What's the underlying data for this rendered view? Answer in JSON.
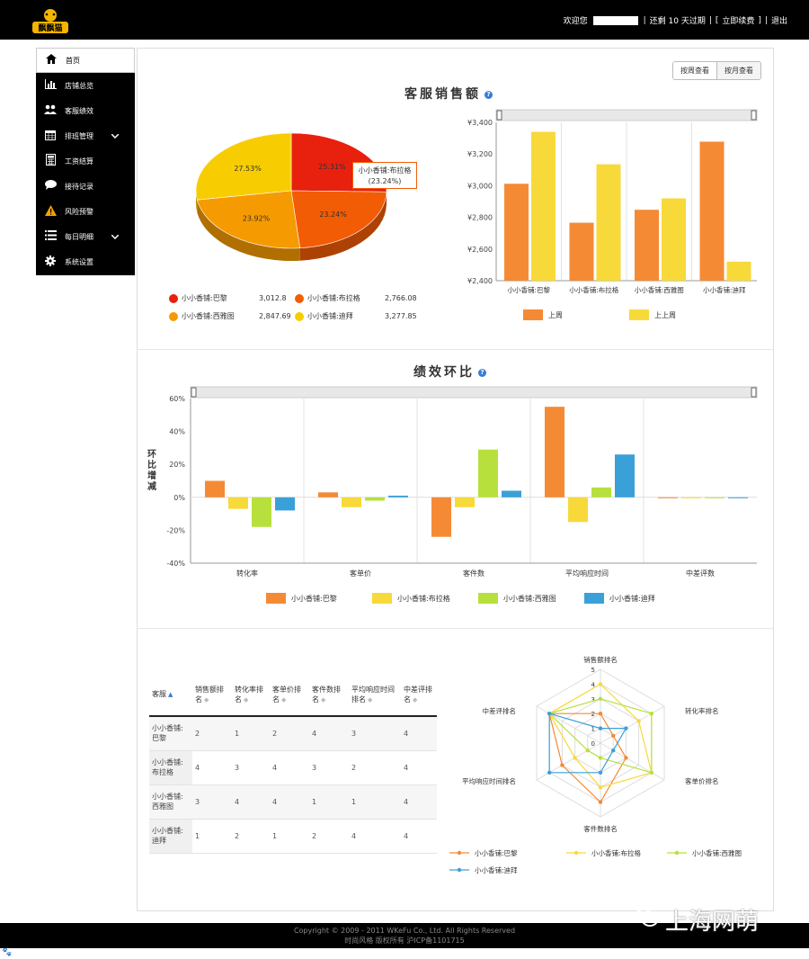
{
  "header": {
    "logo_text": "飘飘猫",
    "welcome": "欢迎您",
    "expiry": "还剩 10 天过期",
    "renew": "立即续费",
    "logout": "退出"
  },
  "sidebar": {
    "items": [
      {
        "label": "首页",
        "icon": "home-icon"
      },
      {
        "label": "店铺总览",
        "icon": "bar-chart-icon"
      },
      {
        "label": "客服绩效",
        "icon": "users-icon"
      },
      {
        "label": "排班管理",
        "icon": "calendar-icon"
      },
      {
        "label": "工资结算",
        "icon": "calculator-icon"
      },
      {
        "label": "接待记录",
        "icon": "chat-bubble-icon"
      },
      {
        "label": "风险预警",
        "icon": "warning-icon"
      },
      {
        "label": "每日明细",
        "icon": "list-icon"
      },
      {
        "label": "系统设置",
        "icon": "gear-icon"
      }
    ]
  },
  "view_toggle": {
    "week": "按周查看",
    "month": "按月查看"
  },
  "sales": {
    "title": "客服销售额",
    "help": "?",
    "tooltip_name": "小小香铺:布拉格",
    "tooltip_pct": "(23.24%)",
    "pie": {
      "slices": [
        {
          "name": "小小香铺:巴黎",
          "value": 3012.8,
          "pct": "25.31%",
          "color": "#e8200e"
        },
        {
          "name": "小小香铺:布拉格",
          "value": 2766.08,
          "pct": "23.24%",
          "color": "#f25c05"
        },
        {
          "name": "小小香铺:西雅图",
          "value": 2847.69,
          "pct": "23.92%",
          "color": "#f59a00"
        },
        {
          "name": "小小香铺:迪拜",
          "value": 3277.85,
          "pct": "27.53%",
          "color": "#f7cd02"
        }
      ],
      "legend_values": [
        "3,012.8",
        "2,766.08",
        "2,847.69",
        "3,277.85"
      ]
    }
  },
  "chart_data": [
    {
      "type": "pie",
      "labels": [
        "小小香铺:巴黎",
        "小小香铺:布拉格",
        "小小香铺:西雅图",
        "小小香铺:迪拜"
      ],
      "values": [
        3012.8,
        2766.08,
        2847.69,
        3277.85
      ]
    },
    {
      "type": "bar",
      "categories": [
        "小小香铺:巴黎",
        "小小香铺:布拉格",
        "小小香铺:西雅图",
        "小小香铺:迪拜"
      ],
      "series": [
        {
          "name": "上周",
          "values": [
            3012,
            2766,
            2848,
            3278
          ],
          "color": "#f58a35"
        },
        {
          "name": "上上周",
          "values": [
            3340,
            3135,
            2920,
            2520
          ],
          "color": "#f8d93a"
        }
      ],
      "ylim": [
        2400,
        3400
      ],
      "yticks": [
        "¥2,400",
        "¥2,600",
        "¥2,800",
        "¥3,000",
        "¥3,200",
        "¥3,400"
      ]
    },
    {
      "type": "bar",
      "title": "绩效环比",
      "categories": [
        "转化率",
        "客单价",
        "客件数",
        "平均响应时间",
        "中差评数"
      ],
      "ylabel": "环比增减",
      "ylim": [
        -40,
        60
      ],
      "yticks": [
        "-40%",
        "-20%",
        "0%",
        "20%",
        "40%",
        "60%"
      ],
      "series": [
        {
          "name": "小小香铺:巴黎",
          "values": [
            10,
            3,
            -24,
            55,
            -0.5
          ],
          "color": "#f58a35"
        },
        {
          "name": "小小香铺:布拉格",
          "values": [
            -7,
            -6,
            -6,
            -15,
            -0.5
          ],
          "color": "#f8d93a"
        },
        {
          "name": "小小香铺:西雅图",
          "values": [
            -18,
            -2,
            29,
            6,
            -0.5
          ],
          "color": "#b8e03c"
        },
        {
          "name": "小小香铺:迪拜",
          "values": [
            -8,
            1,
            4,
            26,
            -0.5
          ],
          "color": "#3aa0d8"
        }
      ]
    },
    {
      "type": "radar",
      "axes": [
        "销售额排名",
        "转化率排名",
        "客单价排名",
        "客件数排名",
        "平均响应时间排名",
        "中差评排名"
      ],
      "rmax": 5,
      "ticks": [
        "0",
        "1",
        "2",
        "3",
        "4",
        "5"
      ],
      "series": [
        {
          "name": "小小香铺:巴黎",
          "values": [
            2,
            1,
            2,
            4,
            3,
            4
          ],
          "color": "#f58a35"
        },
        {
          "name": "小小香铺:布拉格",
          "values": [
            4,
            3,
            4,
            3,
            2,
            4
          ],
          "color": "#f8d93a"
        },
        {
          "name": "小小香铺:西雅图",
          "values": [
            3,
            4,
            4,
            1,
            1,
            4
          ],
          "color": "#b8e03c"
        },
        {
          "name": "小小香铺:迪拜",
          "values": [
            1,
            2,
            1,
            2,
            4,
            4
          ],
          "color": "#3aa0d8"
        }
      ]
    }
  ],
  "perf": {
    "title": "绩效环比",
    "help": "?"
  },
  "rank_table": {
    "headers": [
      "客服",
      "销售额排名",
      "转化率排名",
      "客单价排名",
      "客件数排名",
      "平均响应时间排名",
      "中差评排名"
    ],
    "rows": [
      [
        "小小香铺:巴黎",
        "2",
        "1",
        "2",
        "4",
        "3",
        "4"
      ],
      [
        "小小香铺:布拉格",
        "4",
        "3",
        "4",
        "3",
        "2",
        "4"
      ],
      [
        "小小香铺:西雅图",
        "3",
        "4",
        "4",
        "1",
        "1",
        "4"
      ],
      [
        "小小香铺:迪拜",
        "1",
        "2",
        "1",
        "2",
        "4",
        "4"
      ]
    ]
  },
  "footer": {
    "copyright": "Copyright © 2009 - 2011 WKeFu Co., Ltd. All Rights Reserved",
    "icp": "时尚风格 版权所有 沪ICP备1101715"
  },
  "watermark": "上海网萌"
}
